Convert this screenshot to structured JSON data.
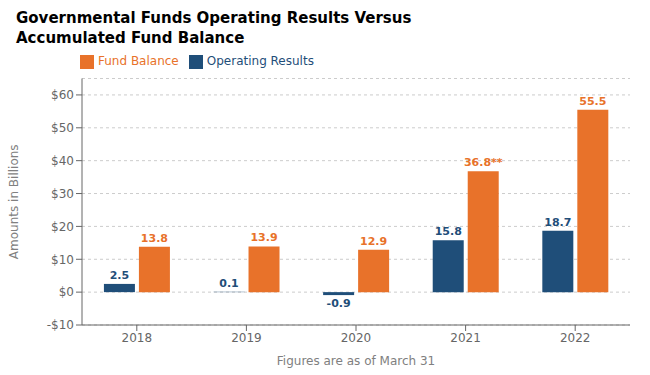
{
  "chart_data": {
    "type": "bar",
    "title": "Governmental Funds Operating Results Versus\nAccumulated Fund Balance",
    "categories": [
      "2018",
      "2019",
      "2020",
      "2021",
      "2022"
    ],
    "series": [
      {
        "name": "Operating Results",
        "color": "#1F4E79",
        "values": [
          2.5,
          0.1,
          -0.9,
          15.8,
          18.7
        ]
      },
      {
        "name": "Fund Balance",
        "color": "#E8722A",
        "values": [
          13.8,
          13.9,
          12.9,
          36.8,
          55.5
        ],
        "value_labels": [
          "13.8",
          "13.9",
          "12.9",
          "36.8**",
          "55.5"
        ]
      }
    ],
    "xlabel": "Figures are as of March 31",
    "ylabel": "Amounts in Billions",
    "ylim": [
      -10,
      65
    ],
    "yticks": [
      {
        "value": -10,
        "label": "-$10"
      },
      {
        "value": 0,
        "label": "$0"
      },
      {
        "value": 10,
        "label": "$10"
      },
      {
        "value": 20,
        "label": "$20"
      },
      {
        "value": 30,
        "label": "$30"
      },
      {
        "value": 40,
        "label": "$40"
      },
      {
        "value": 50,
        "label": "$50"
      },
      {
        "value": 60,
        "label": "$60"
      }
    ],
    "grid": true,
    "legend": "upper left",
    "data_labels": true
  }
}
